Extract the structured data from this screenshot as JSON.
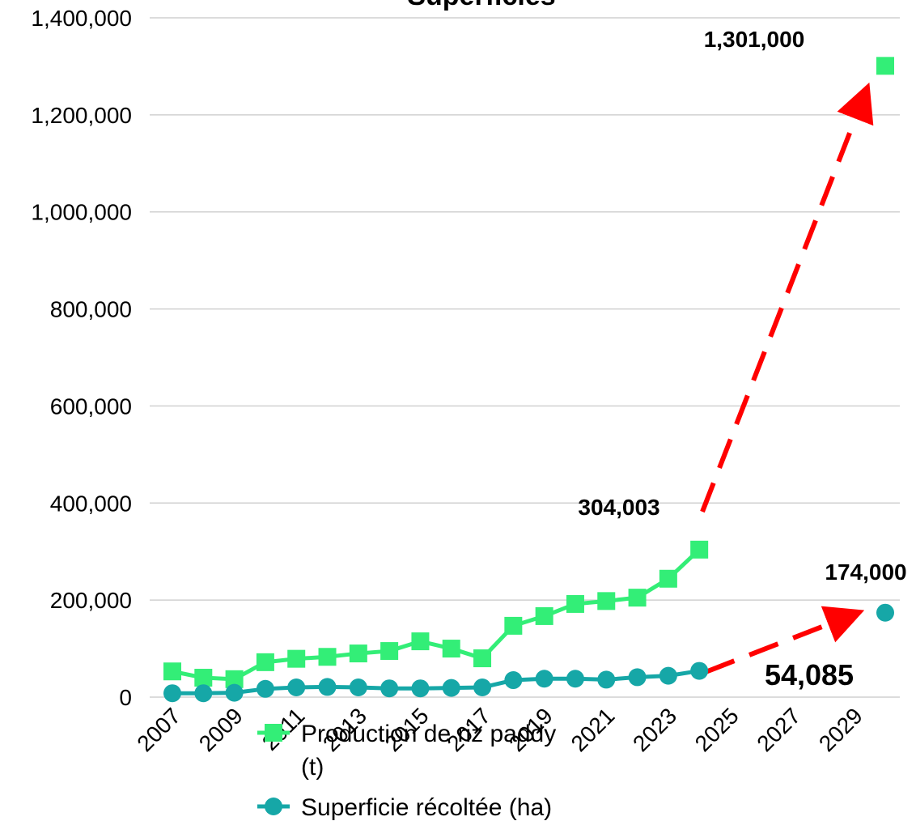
{
  "chart_data": {
    "type": "line",
    "title": "Superficies",
    "ylim": [
      0,
      1400000
    ],
    "yticks": [
      "0",
      "200,000",
      "400,000",
      "600,000",
      "800,000",
      "1,000,000",
      "1,200,000",
      "1,400,000"
    ],
    "ytick_values": [
      0,
      200000,
      400000,
      600000,
      800000,
      1000000,
      1200000,
      1400000
    ],
    "x_categories": [
      "2007",
      "2008",
      "2009",
      "2010",
      "2011",
      "2012",
      "2013",
      "2014",
      "2015",
      "2016",
      "2017",
      "2018",
      "2019",
      "2020",
      "2021",
      "2022",
      "2023",
      "2024",
      "2025",
      "2026",
      "2027",
      "2028",
      "2029",
      "2030"
    ],
    "xtick_labels": [
      "2007",
      "2009",
      "2011",
      "2013",
      "2015",
      "2017",
      "2019",
      "2021",
      "2023",
      "2025",
      "2027",
      "2029"
    ],
    "grid": true,
    "series": [
      {
        "name": "Production de riz paddy (t)",
        "color": "#33ee77",
        "marker": "square",
        "x": [
          "2007",
          "2008",
          "2009",
          "2010",
          "2011",
          "2012",
          "2013",
          "2014",
          "2015",
          "2016",
          "2017",
          "2018",
          "2019",
          "2020",
          "2021",
          "2022",
          "2023",
          "2024"
        ],
        "values": [
          53000,
          40000,
          37000,
          72000,
          79000,
          83000,
          90000,
          95000,
          115000,
          100000,
          80000,
          147000,
          167000,
          192000,
          198000,
          205000,
          244000,
          304003
        ]
      },
      {
        "name": "Superficie récoltée (ha)",
        "color": "#16a7a7",
        "marker": "circle",
        "x": [
          "2007",
          "2008",
          "2009",
          "2010",
          "2011",
          "2012",
          "2013",
          "2014",
          "2015",
          "2016",
          "2017",
          "2018",
          "2019",
          "2020",
          "2021",
          "2022",
          "2023",
          "2024"
        ],
        "values": [
          8000,
          8000,
          9000,
          17000,
          20000,
          21000,
          20000,
          18000,
          18000,
          19000,
          20000,
          35000,
          38000,
          38000,
          36000,
          41000,
          44000,
          54085
        ]
      }
    ],
    "targets": [
      {
        "series": 0,
        "x": "2030",
        "value": 1301000,
        "label": "1,301,000"
      },
      {
        "series": 1,
        "x": "2030",
        "value": 174000,
        "label": "174,000"
      }
    ],
    "annotations": [
      "304,003",
      "54,085"
    ],
    "projection_arrow_color": "#ff0000",
    "legend": {
      "placement": "bottom",
      "entries": [
        {
          "line1": "Production de riz paddy",
          "line2": "(t)"
        },
        {
          "line1": "Superficie récoltée (ha)",
          "line2": ""
        }
      ]
    }
  }
}
